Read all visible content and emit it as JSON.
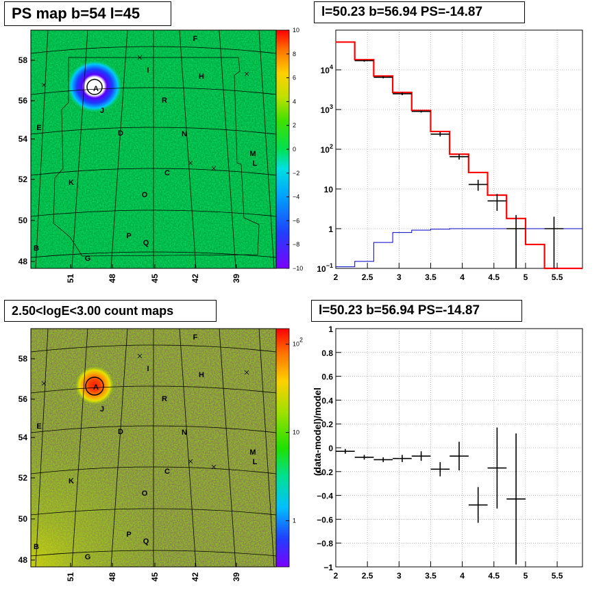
{
  "chart_data": [
    {
      "type": "heatmap",
      "title": "PS map b=54 l=45",
      "x_ticks": [
        "51",
        "48",
        "45",
        "42",
        "39"
      ],
      "y_ticks": [
        "58",
        "56",
        "54",
        "52",
        "50",
        "48"
      ],
      "palette_ticks": [
        "10",
        "8",
        "6",
        "4",
        "2",
        "0",
        "−2",
        "−4",
        "−6",
        "−8",
        "−10"
      ],
      "zlim": [
        -10,
        10
      ],
      "source_labels": [
        "A",
        "B",
        "C",
        "D",
        "E",
        "F",
        "G",
        "H",
        "I",
        "J",
        "K",
        "L",
        "M",
        "N",
        "O",
        "P",
        "Q",
        "R"
      ]
    },
    {
      "type": "line",
      "title": "l=50.23 b=56.94 PS=-14.87",
      "log_y": true,
      "xlim": [
        2,
        5.9
      ],
      "ylim": [
        0.1,
        100000
      ],
      "x_ticks": [
        "2",
        "2.5",
        "3",
        "3.5",
        "4",
        "4.5",
        "5",
        "5.5"
      ],
      "y_ticks": [
        {
          "value": 0.1,
          "base": "10",
          "exp": "−1"
        },
        {
          "value": 1,
          "base": "1",
          "exp": ""
        },
        {
          "value": 10,
          "base": "10",
          "exp": ""
        },
        {
          "value": 100,
          "base": "10",
          "exp": "2"
        },
        {
          "value": 1000,
          "base": "10",
          "exp": "3"
        },
        {
          "value": 10000,
          "base": "10",
          "exp": "4"
        }
      ],
      "bin_edges": [
        2.0,
        2.3,
        2.6,
        2.9,
        3.2,
        3.5,
        3.8,
        4.1,
        4.4,
        4.7,
        5.0,
        5.3,
        5.6,
        5.9
      ],
      "series": [
        {
          "kind": "model",
          "color": "#ff0000",
          "values": [
            50000,
            18000,
            7000,
            2700,
            950,
            280,
            75,
            26,
            7,
            1.8,
            0.4,
            0.1,
            0.1
          ]
        },
        {
          "kind": "background",
          "color": "#0000cc",
          "values": [
            0.11,
            0.15,
            0.45,
            0.8,
            0.92,
            0.97,
            1.0,
            1.0,
            1.0,
            1.0,
            1.0,
            1.0,
            1.0
          ]
        },
        {
          "kind": "data",
          "color": "#000000",
          "points": [
            {
              "x": 2.45,
              "y": 17000,
              "lo": 16000,
              "hi": 18000
            },
            {
              "x": 2.75,
              "y": 6500,
              "lo": 6100,
              "hi": 6900
            },
            {
              "x": 3.05,
              "y": 2500,
              "lo": 2300,
              "hi": 2700
            },
            {
              "x": 3.35,
              "y": 900,
              "lo": 840,
              "hi": 960
            },
            {
              "x": 3.65,
              "y": 240,
              "lo": 210,
              "hi": 270
            },
            {
              "x": 3.95,
              "y": 65,
              "lo": 55,
              "hi": 76
            },
            {
              "x": 4.25,
              "y": 13,
              "lo": 9,
              "hi": 17
            },
            {
              "x": 4.55,
              "y": 5,
              "lo": 2.8,
              "hi": 7.5
            },
            {
              "x": 4.85,
              "y": 1,
              "lo": 0.1,
              "hi": 2.2
            },
            {
              "x": 5.45,
              "y": 1,
              "lo": 0.1,
              "hi": 2.0
            }
          ]
        }
      ]
    },
    {
      "type": "heatmap",
      "title": "2.50<logE<3.00 count maps",
      "x_ticks": [
        "51",
        "48",
        "45",
        "42",
        "39"
      ],
      "y_ticks": [
        "58",
        "56",
        "54",
        "52",
        "50",
        "48"
      ],
      "palette_ticks": [
        {
          "value": 100,
          "base": "10",
          "exp": "2"
        },
        {
          "value": 10,
          "base": "10",
          "exp": ""
        },
        {
          "value": 1,
          "base": "1",
          "exp": ""
        }
      ],
      "log_z": true,
      "source_labels": [
        "A",
        "B",
        "C",
        "D",
        "E",
        "F",
        "G",
        "H",
        "I",
        "J",
        "K",
        "L",
        "M",
        "N",
        "O",
        "P",
        "Q",
        "R"
      ]
    },
    {
      "type": "scatter",
      "title": "l=50.23 b=56.94 PS=-14.87",
      "ylabel": "(data-model)/model",
      "xlim": [
        2,
        5.9
      ],
      "ylim": [
        -1,
        1
      ],
      "x_ticks": [
        "2",
        "2.5",
        "3",
        "3.5",
        "4",
        "4.5",
        "5",
        "5.5"
      ],
      "y_ticks": [
        "1",
        "0.8",
        "0.6",
        "0.4",
        "0.2",
        "0",
        "−0.2",
        "−0.4",
        "−0.6",
        "−0.8",
        "−1"
      ],
      "points": [
        {
          "x": 2.15,
          "xerr": 0.15,
          "y": -0.03,
          "err": 0.02
        },
        {
          "x": 2.45,
          "xerr": 0.15,
          "y": -0.08,
          "err": 0.02
        },
        {
          "x": 2.75,
          "xerr": 0.15,
          "y": -0.1,
          "err": 0.02
        },
        {
          "x": 3.05,
          "xerr": 0.15,
          "y": -0.09,
          "err": 0.03
        },
        {
          "x": 3.35,
          "xerr": 0.15,
          "y": -0.07,
          "err": 0.04
        },
        {
          "x": 3.65,
          "xerr": 0.15,
          "y": -0.18,
          "err": 0.06
        },
        {
          "x": 3.95,
          "xerr": 0.15,
          "y": -0.07,
          "err": 0.12
        },
        {
          "x": 4.25,
          "xerr": 0.15,
          "y": -0.48,
          "err": 0.15
        },
        {
          "x": 4.55,
          "xerr": 0.15,
          "y": -0.17,
          "err": 0.34
        },
        {
          "x": 4.85,
          "xerr": 0.15,
          "y": -0.43,
          "err": 0.55
        }
      ]
    }
  ]
}
